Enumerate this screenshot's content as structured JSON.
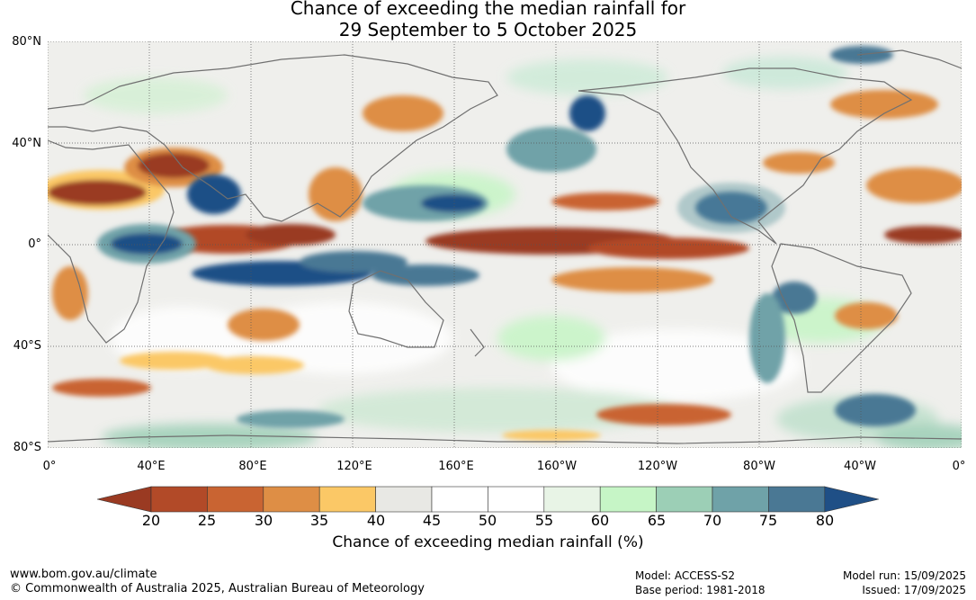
{
  "title": {
    "line1": "Chance of exceeding the median rainfall for",
    "line2": "29 September to 5 October 2025"
  },
  "map": {
    "lat_labels": [
      "80°N",
      "40°N",
      "0°",
      "40°S",
      "80°S"
    ],
    "lon_labels": [
      "0°",
      "40°E",
      "80°E",
      "120°E",
      "160°E",
      "160°W",
      "120°W",
      "80°W",
      "40°W",
      "0°"
    ]
  },
  "colorbar": {
    "ticks": [
      "20",
      "25",
      "30",
      "35",
      "40",
      "45",
      "50",
      "55",
      "60",
      "65",
      "70",
      "75",
      "80"
    ],
    "colors": [
      "#9a3a22",
      "#b24a28",
      "#c96432",
      "#de8e45",
      "#fbc866",
      "#e8e8e4",
      "#ffffff",
      "#ffffff",
      "#e8f4e6",
      "#c6f5c6",
      "#9ccfb6",
      "#6fa2a8",
      "#4a7894",
      "#1f4f86"
    ],
    "title": "Chance of exceeding median rainfall (%)"
  },
  "footer": {
    "url": "www.bom.gov.au/climate",
    "copyright": "© Commonwealth of Australia 2025, Australian Bureau of Meteorology",
    "model": "Model: ACCESS-S2",
    "base_period": "Base period: 1981-2018",
    "model_run": "Model run: 15/09/2025",
    "issued": "Issued: 17/09/2025"
  }
}
